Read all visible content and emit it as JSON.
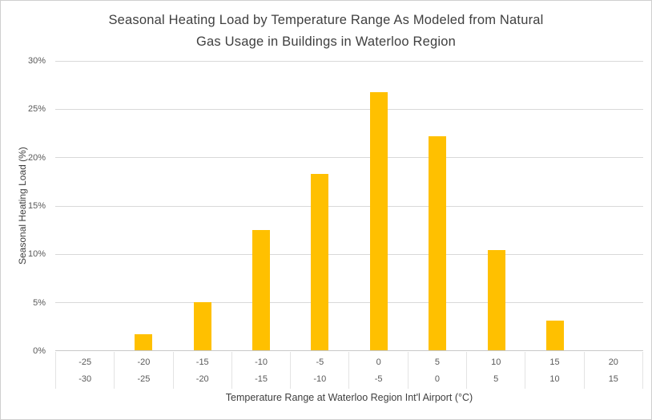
{
  "title": {
    "line1": "Seasonal Heating Load by Temperature Range As Modeled from Natural",
    "line2": "Gas Usage in Buildings in Waterloo Region"
  },
  "chart_data": {
    "type": "bar",
    "title": "Seasonal Heating Load by Temperature Range As Modeled from Natural Gas Usage in Buildings in Waterloo Region",
    "xlabel": "Temperature Range at Waterloo Region Int'l Airport (°C)",
    "ylabel": "Seasonal Heating Load (%)",
    "ylim": [
      0,
      30
    ],
    "y_tick_step": 5,
    "y_tick_labels": [
      "0%",
      "5%",
      "10%",
      "15%",
      "20%",
      "25%",
      "30%"
    ],
    "categories_upper": [
      "-25",
      "-20",
      "-15",
      "-10",
      "-5",
      "0",
      "5",
      "10",
      "15",
      "20"
    ],
    "categories_lower": [
      "-30",
      "-25",
      "-20",
      "-15",
      "-10",
      "-5",
      "0",
      "5",
      "10",
      "15"
    ],
    "values": [
      0,
      1.7,
      5.0,
      12.5,
      18.3,
      26.8,
      22.2,
      10.4,
      3.1,
      0
    ],
    "bar_color": "#FFC000",
    "grid": true,
    "legend": "none"
  }
}
